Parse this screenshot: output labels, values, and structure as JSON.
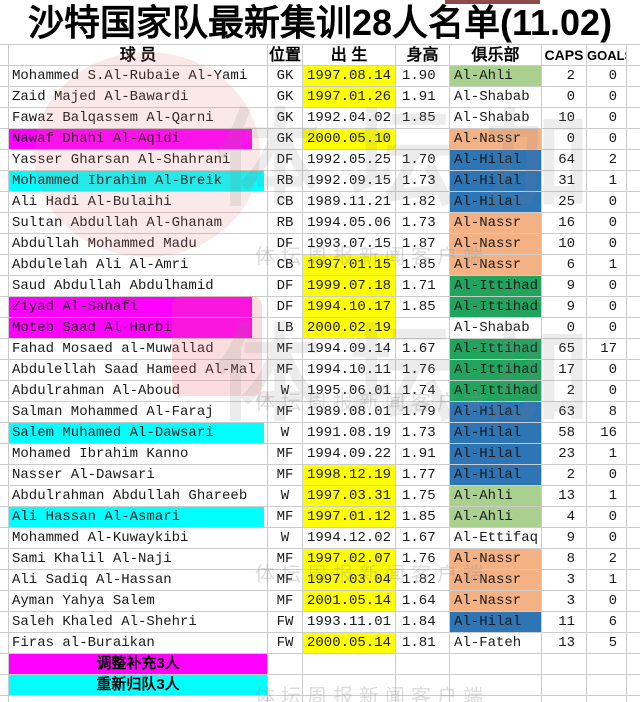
{
  "title": "沙特国家队最新集训28人名单(11.02)",
  "watermark": {
    "big_text": "体坛加",
    "small_text": "体坛周报新闻客户端"
  },
  "colors": {
    "magenta": "#ff00ff",
    "cyan": "#00ffff",
    "yellow": "#ffff00",
    "al_ahli_green": "#a9d08e",
    "al_ittihad_green": "#21a55e",
    "al_hilal_blue": "#2e75b6",
    "al_nassr_orange": "#f4b183"
  },
  "table": {
    "headers": {
      "player": "球 员",
      "position": "位置",
      "birth": "出 生",
      "height": "身高",
      "club": "俱乐部",
      "caps": "CAPS",
      "goals": "GOALS"
    },
    "rows": [
      {
        "name": "Mohammed S.Al-Rubaie Al-Yami",
        "pos": "GK",
        "birth": "1997.08.14",
        "height": "1.90",
        "club": "Al-Ahli",
        "caps": "2",
        "goals": "0",
        "name_hl": "",
        "birth_hl": true,
        "club_color": "ahli"
      },
      {
        "name": "Zaid Majed Al-Bawardi",
        "pos": "GK",
        "birth": "1997.01.26",
        "height": "1.91",
        "club": "Al-Shabab",
        "caps": "0",
        "goals": "0",
        "name_hl": "",
        "birth_hl": true,
        "club_color": ""
      },
      {
        "name": "Fawaz Balqassem Al-Qarni",
        "pos": "GK",
        "birth": "1992.04.02",
        "height": "1.85",
        "club": "Al-Shabab",
        "caps": "10",
        "goals": "0",
        "name_hl": "",
        "birth_hl": false,
        "club_color": ""
      },
      {
        "name": "Nawaf Dhahi Al-Aqidi",
        "pos": "GK",
        "birth": "2000.05.10",
        "height": "",
        "club": "Al-Nassr",
        "caps": "0",
        "goals": "0",
        "name_hl": "magenta",
        "birth_hl": true,
        "club_color": "nassr"
      },
      {
        "name": "Yasser Gharsan Al-Shahrani",
        "pos": "DF",
        "birth": "1992.05.25",
        "height": "1.70",
        "club": "Al-Hilal",
        "caps": "64",
        "goals": "2",
        "name_hl": "",
        "birth_hl": false,
        "club_color": "hilal"
      },
      {
        "name": "Mohammed Ibrahim Al-Breik",
        "pos": "RB",
        "birth": "1992.09.15",
        "height": "1.73",
        "club": "Al-Hilal",
        "caps": "31",
        "goals": "1",
        "name_hl": "cyan",
        "birth_hl": false,
        "club_color": "hilal"
      },
      {
        "name": "Ali Hadi Al-Bulaihi",
        "pos": "CB",
        "birth": "1989.11.21",
        "height": "1.82",
        "club": "Al-Hilal",
        "caps": "25",
        "goals": "0",
        "name_hl": "",
        "birth_hl": false,
        "club_color": "hilal"
      },
      {
        "name": "Sultan Abdullah Al-Ghanam",
        "pos": "RB",
        "birth": "1994.05.06",
        "height": "1.73",
        "club": "Al-Nassr",
        "caps": "16",
        "goals": "0",
        "name_hl": "",
        "birth_hl": false,
        "club_color": "nassr"
      },
      {
        "name": "Abdullah Mohammed Madu",
        "pos": "DF",
        "birth": "1993.07.15",
        "height": "1.87",
        "club": "Al-Nassr",
        "caps": "10",
        "goals": "0",
        "name_hl": "",
        "birth_hl": false,
        "club_color": "nassr"
      },
      {
        "name": "Abdulelah Ali Al-Amri",
        "pos": "CB",
        "birth": "1997.01.15",
        "height": "1.85",
        "club": "Al-Nassr",
        "caps": "6",
        "goals": "1",
        "name_hl": "",
        "birth_hl": true,
        "club_color": "nassr"
      },
      {
        "name": "Saud Abdullah Abdulhamid",
        "pos": "DF",
        "birth": "1999.07.18",
        "height": "1.71",
        "club": "Al-Ittihad",
        "caps": "9",
        "goals": "0",
        "name_hl": "",
        "birth_hl": true,
        "club_color": "ittihad"
      },
      {
        "name": "Ziyad Al-Sahafi",
        "pos": "DF",
        "birth": "1994.10.17",
        "height": "1.85",
        "club": "Al-Ittihad",
        "caps": "9",
        "goals": "0",
        "name_hl": "magenta",
        "birth_hl": true,
        "club_color": "ittihad"
      },
      {
        "name": "Moteb Saad Al-Harbi",
        "pos": "LB",
        "birth": "2000.02.19",
        "height": "",
        "club": "Al-Shabab",
        "caps": "0",
        "goals": "0",
        "name_hl": "magenta",
        "birth_hl": true,
        "club_color": ""
      },
      {
        "name": "Fahad Mosaed al-Muwallad",
        "pos": "MF",
        "birth": "1994.09.14",
        "height": "1.67",
        "club": "Al-Ittihad",
        "caps": "65",
        "goals": "17",
        "name_hl": "",
        "birth_hl": false,
        "club_color": "ittihad"
      },
      {
        "name": "Abdulellah Saad Hameed Al-Mal",
        "pos": "MF",
        "birth": "1994.10.11",
        "height": "1.76",
        "club": "Al-Ittihad",
        "caps": "17",
        "goals": "0",
        "name_hl": "",
        "birth_hl": false,
        "club_color": "ittihad"
      },
      {
        "name": "Abdulrahman Al-Aboud",
        "pos": "W",
        "birth": "1995.06.01",
        "height": "1.74",
        "club": "Al-Ittihad",
        "caps": "2",
        "goals": "0",
        "name_hl": "",
        "birth_hl": false,
        "club_color": "ittihad"
      },
      {
        "name": "Salman Mohammed Al-Faraj",
        "pos": "MF",
        "birth": "1989.08.01",
        "height": "1.79",
        "club": "Al-Hilal",
        "caps": "63",
        "goals": "8",
        "name_hl": "",
        "birth_hl": false,
        "club_color": "hilal"
      },
      {
        "name": "Salem Muhamed Al-Dawsari",
        "pos": "W",
        "birth": "1991.08.19",
        "height": "1.73",
        "club": "Al-Hilal",
        "caps": "58",
        "goals": "16",
        "name_hl": "cyan",
        "birth_hl": false,
        "club_color": "hilal"
      },
      {
        "name": "Mohamed Ibrahim Kanno",
        "pos": "MF",
        "birth": "1994.09.22",
        "height": "1.91",
        "club": "Al-Hilal",
        "caps": "23",
        "goals": "1",
        "name_hl": "",
        "birth_hl": false,
        "club_color": "hilal"
      },
      {
        "name": "Nasser Al-Dawsari",
        "pos": "MF",
        "birth": "1998.12.19",
        "height": "1.77",
        "club": "Al-Hilal",
        "caps": "2",
        "goals": "0",
        "name_hl": "",
        "birth_hl": true,
        "club_color": "hilal"
      },
      {
        "name": "Abdulrahman Abdullah Ghareeb",
        "pos": "W",
        "birth": "1997.03.31",
        "height": "1.75",
        "club": "Al-Ahli",
        "caps": "13",
        "goals": "1",
        "name_hl": "",
        "birth_hl": true,
        "club_color": "ahli"
      },
      {
        "name": "Ali Hassan Al-Asmari",
        "pos": "MF",
        "birth": "1997.01.12",
        "height": "1.85",
        "club": "Al-Ahli",
        "caps": "4",
        "goals": "0",
        "name_hl": "cyan",
        "birth_hl": true,
        "club_color": "ahli"
      },
      {
        "name": "Mohammed Al-Kuwaykibi",
        "pos": "W",
        "birth": "1994.12.02",
        "height": "1.67",
        "club": "Al-Ettifaq",
        "caps": "9",
        "goals": "0",
        "name_hl": "",
        "birth_hl": false,
        "club_color": ""
      },
      {
        "name": "Sami Khalil Al-Naji",
        "pos": "MF",
        "birth": "1997.02.07",
        "height": "1.76",
        "club": "Al-Nassr",
        "caps": "8",
        "goals": "2",
        "name_hl": "",
        "birth_hl": true,
        "club_color": "nassr"
      },
      {
        "name": "Ali Sadiq Al-Hassan",
        "pos": "MF",
        "birth": "1997.03.04",
        "height": "1.82",
        "club": "Al-Nassr",
        "caps": "3",
        "goals": "1",
        "name_hl": "",
        "birth_hl": true,
        "club_color": "nassr"
      },
      {
        "name": "Ayman Yahya Salem",
        "pos": "MF",
        "birth": "2001.05.14",
        "height": "1.64",
        "club": "Al-Nassr",
        "caps": "3",
        "goals": "0",
        "name_hl": "",
        "birth_hl": true,
        "club_color": "nassr"
      },
      {
        "name": "Saleh Khaled Al-Shehri",
        "pos": "FW",
        "birth": "1993.11.01",
        "height": "1.84",
        "club": "Al-Hilal",
        "caps": "11",
        "goals": "6",
        "name_hl": "",
        "birth_hl": false,
        "club_color": "hilal"
      },
      {
        "name": "Firas al-Buraikan",
        "pos": "FW",
        "birth": "2000.05.14",
        "height": "1.81",
        "club": "Al-Fateh",
        "caps": "13",
        "goals": "5",
        "name_hl": "",
        "birth_hl": true,
        "club_color": ""
      }
    ],
    "footers": [
      {
        "label": "调整补充3人",
        "color": "magenta"
      },
      {
        "label": "重新归队3人",
        "color": "cyan"
      }
    ]
  }
}
